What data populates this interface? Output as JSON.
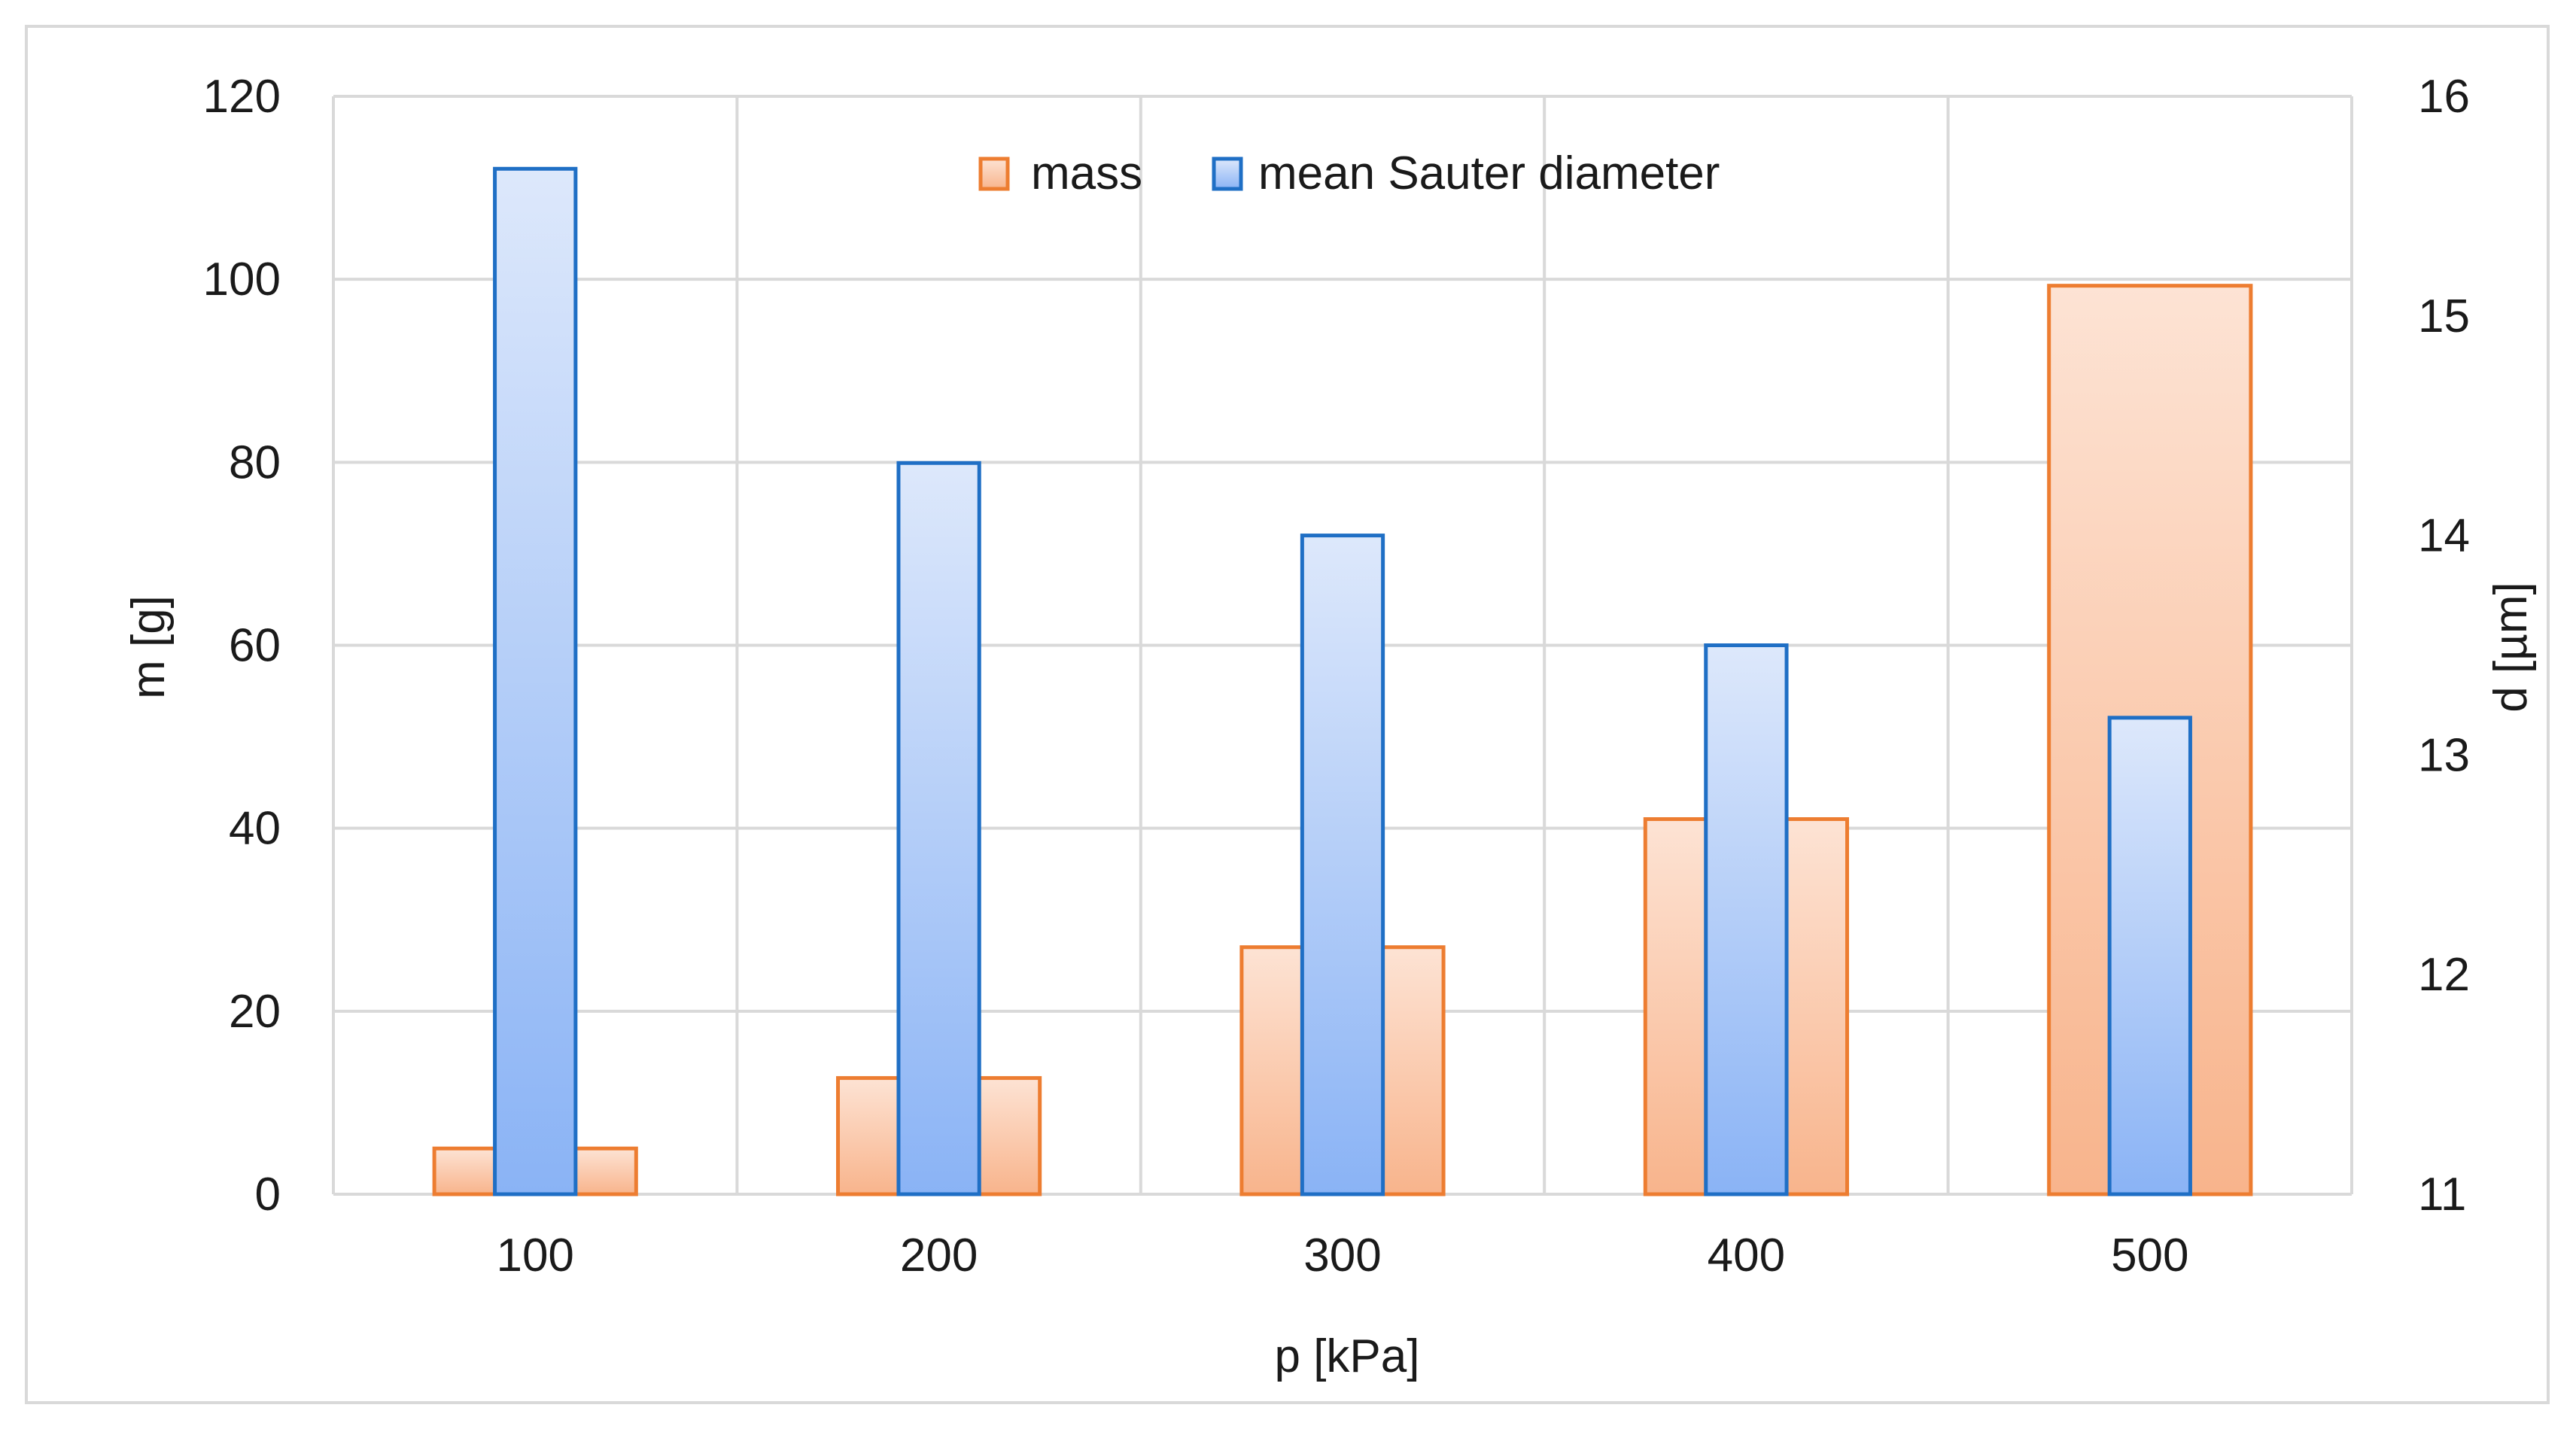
{
  "chart_data": {
    "type": "bar",
    "categories": [
      "100",
      "200",
      "300",
      "400",
      "500"
    ],
    "xlabel": "p [kPa]",
    "ylabel_left": "m [g]",
    "ylabel_right": "d [µm]",
    "ylim_left": [
      0,
      120
    ],
    "ylim_right": [
      11,
      16
    ],
    "yticks_left": [
      "0",
      "20",
      "40",
      "60",
      "80",
      "100",
      "120"
    ],
    "yticks_right": [
      "11",
      "12",
      "13",
      "14",
      "15",
      "16"
    ],
    "grid": true,
    "legend_position": "top-center",
    "series": [
      {
        "name": "mass",
        "axis": "left",
        "values": [
          5,
          12.7,
          27,
          41,
          99.3
        ],
        "stroke_color": "#ed7d31",
        "fill_top": "#fde3d4",
        "fill_bottom": "#f8b48c"
      },
      {
        "name": "mean Sauter diameter",
        "axis": "right",
        "values": [
          15.67,
          14.33,
          14.0,
          13.5,
          13.17
        ],
        "stroke_color": "#1f6fc5",
        "fill_top": "#dde8fb",
        "fill_bottom": "#8ab3f5"
      }
    ]
  }
}
